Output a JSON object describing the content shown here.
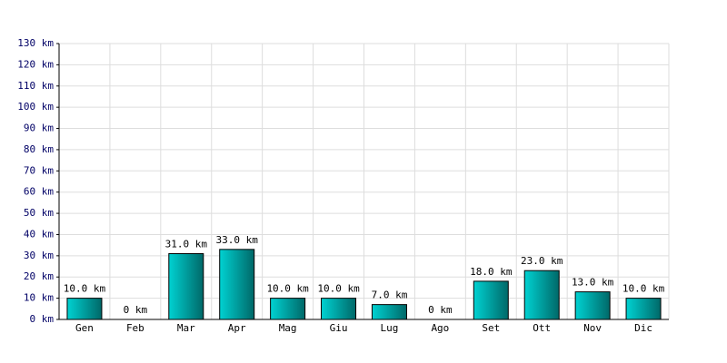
{
  "chart_data": {
    "type": "bar",
    "categories": [
      "Gen",
      "Feb",
      "Mar",
      "Apr",
      "Mag",
      "Giu",
      "Lug",
      "Ago",
      "Set",
      "Ott",
      "Nov",
      "Dic"
    ],
    "values": [
      10,
      0,
      31,
      33,
      10,
      10,
      7,
      0,
      18,
      23,
      13,
      10
    ],
    "value_labels": [
      "10.0 km",
      "0 km",
      "31.0 km",
      "33.0 km",
      "10.0 km",
      "10.0 km",
      "7.0 km",
      "0 km",
      "18.0 km",
      "23.0 km",
      "13.0 km",
      "10.0 km"
    ],
    "color": "#00d2d2",
    "ylim": [
      0,
      130
    ],
    "yticks": [
      {
        "value": 0,
        "label": "0 km"
      },
      {
        "value": 10,
        "label": "10 km"
      },
      {
        "value": 20,
        "label": "20 km"
      },
      {
        "value": 30,
        "label": "30 km"
      },
      {
        "value": 40,
        "label": "40 km"
      },
      {
        "value": 50,
        "label": "50 km"
      },
      {
        "value": 60,
        "label": "60 km"
      },
      {
        "value": 70,
        "label": "70 km"
      },
      {
        "value": 80,
        "label": "80 km"
      },
      {
        "value": 90,
        "label": "90 km"
      },
      {
        "value": 100,
        "label": "100 km"
      },
      {
        "value": 110,
        "label": "110 km"
      },
      {
        "value": 120,
        "label": "120 km"
      },
      {
        "value": 130,
        "label": "130 km"
      }
    ],
    "grid": true
  }
}
